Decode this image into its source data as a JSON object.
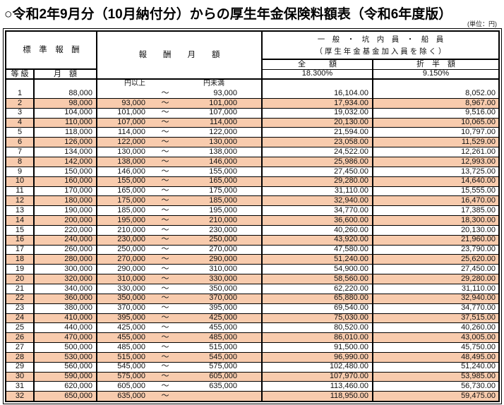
{
  "title": "○令和2年9月分（10月納付分）からの厚生年金保険料額表（令和6年度版）",
  "unit_note": "(単位：円)",
  "colors": {
    "highlight": "#F8CBAD",
    "border": "#000000"
  },
  "table": {
    "header": {
      "standard_remuneration": "標　準　報　酬",
      "grade": "等 級",
      "monthly_amount": "月　額",
      "remuneration_monthly": "報　　酬　　月　　額",
      "group_line1": "一　般　・　坑　内　員　・　船　員",
      "group_line2": "（ 厚 生 年 金 基 金 加 入 員 を 除 く ）",
      "full_amount": "全　　　額",
      "half_amount": "折　半　額",
      "full_rate": "18.300%",
      "half_rate": "9.150%",
      "yen_or_more": "円以上",
      "yen_less_than": "円未満",
      "tilde": "～"
    },
    "rows": [
      {
        "grade": "1",
        "monthly": "88,000",
        "lo": "",
        "hi": "93,000",
        "full": "16,104.00",
        "half": "8,052.00"
      },
      {
        "grade": "2",
        "monthly": "98,000",
        "lo": "93,000",
        "hi": "101,000",
        "full": "17,934.00",
        "half": "8,967.00"
      },
      {
        "grade": "3",
        "monthly": "104,000",
        "lo": "101,000",
        "hi": "107,000",
        "full": "19,032.00",
        "half": "9,516.00"
      },
      {
        "grade": "4",
        "monthly": "110,000",
        "lo": "107,000",
        "hi": "114,000",
        "full": "20,130.00",
        "half": "10,065.00"
      },
      {
        "grade": "5",
        "monthly": "118,000",
        "lo": "114,000",
        "hi": "122,000",
        "full": "21,594.00",
        "half": "10,797.00"
      },
      {
        "grade": "6",
        "monthly": "126,000",
        "lo": "122,000",
        "hi": "130,000",
        "full": "23,058.00",
        "half": "11,529.00"
      },
      {
        "grade": "7",
        "monthly": "134,000",
        "lo": "130,000",
        "hi": "138,000",
        "full": "24,522.00",
        "half": "12,261.00"
      },
      {
        "grade": "8",
        "monthly": "142,000",
        "lo": "138,000",
        "hi": "146,000",
        "full": "25,986.00",
        "half": "12,993.00"
      },
      {
        "grade": "9",
        "monthly": "150,000",
        "lo": "146,000",
        "hi": "155,000",
        "full": "27,450.00",
        "half": "13,725.00"
      },
      {
        "grade": "10",
        "monthly": "160,000",
        "lo": "155,000",
        "hi": "165,000",
        "full": "29,280.00",
        "half": "14,640.00"
      },
      {
        "grade": "11",
        "monthly": "170,000",
        "lo": "165,000",
        "hi": "175,000",
        "full": "31,110.00",
        "half": "15,555.00"
      },
      {
        "grade": "12",
        "monthly": "180,000",
        "lo": "175,000",
        "hi": "185,000",
        "full": "32,940.00",
        "half": "16,470.00"
      },
      {
        "grade": "13",
        "monthly": "190,000",
        "lo": "185,000",
        "hi": "195,000",
        "full": "34,770.00",
        "half": "17,385.00"
      },
      {
        "grade": "14",
        "monthly": "200,000",
        "lo": "195,000",
        "hi": "210,000",
        "full": "36,600.00",
        "half": "18,300.00"
      },
      {
        "grade": "15",
        "monthly": "220,000",
        "lo": "210,000",
        "hi": "230,000",
        "full": "40,260.00",
        "half": "20,130.00"
      },
      {
        "grade": "16",
        "monthly": "240,000",
        "lo": "230,000",
        "hi": "250,000",
        "full": "43,920.00",
        "half": "21,960.00"
      },
      {
        "grade": "17",
        "monthly": "260,000",
        "lo": "250,000",
        "hi": "270,000",
        "full": "47,580.00",
        "half": "23,790.00"
      },
      {
        "grade": "18",
        "monthly": "280,000",
        "lo": "270,000",
        "hi": "290,000",
        "full": "51,240.00",
        "half": "25,620.00"
      },
      {
        "grade": "19",
        "monthly": "300,000",
        "lo": "290,000",
        "hi": "310,000",
        "full": "54,900.00",
        "half": "27,450.00"
      },
      {
        "grade": "20",
        "monthly": "320,000",
        "lo": "310,000",
        "hi": "330,000",
        "full": "58,560.00",
        "half": "29,280.00"
      },
      {
        "grade": "21",
        "monthly": "340,000",
        "lo": "330,000",
        "hi": "350,000",
        "full": "62,220.00",
        "half": "31,110.00"
      },
      {
        "grade": "22",
        "monthly": "360,000",
        "lo": "350,000",
        "hi": "370,000",
        "full": "65,880.00",
        "half": "32,940.00"
      },
      {
        "grade": "23",
        "monthly": "380,000",
        "lo": "370,000",
        "hi": "395,000",
        "full": "69,540.00",
        "half": "34,770.00"
      },
      {
        "grade": "24",
        "monthly": "410,000",
        "lo": "395,000",
        "hi": "425,000",
        "full": "75,030.00",
        "half": "37,515.00"
      },
      {
        "grade": "25",
        "monthly": "440,000",
        "lo": "425,000",
        "hi": "455,000",
        "full": "80,520.00",
        "half": "40,260.00"
      },
      {
        "grade": "26",
        "monthly": "470,000",
        "lo": "455,000",
        "hi": "485,000",
        "full": "86,010.00",
        "half": "43,005.00"
      },
      {
        "grade": "27",
        "monthly": "500,000",
        "lo": "485,000",
        "hi": "515,000",
        "full": "91,500.00",
        "half": "45,750.00"
      },
      {
        "grade": "28",
        "monthly": "530,000",
        "lo": "515,000",
        "hi": "545,000",
        "full": "96,990.00",
        "half": "48,495.00"
      },
      {
        "grade": "29",
        "monthly": "560,000",
        "lo": "545,000",
        "hi": "575,000",
        "full": "102,480.00",
        "half": "51,240.00"
      },
      {
        "grade": "30",
        "monthly": "590,000",
        "lo": "575,000",
        "hi": "605,000",
        "full": "107,970.00",
        "half": "53,985.00"
      },
      {
        "grade": "31",
        "monthly": "620,000",
        "lo": "605,000",
        "hi": "635,000",
        "full": "113,460.00",
        "half": "56,730.00"
      },
      {
        "grade": "32",
        "monthly": "650,000",
        "lo": "635,000",
        "hi": "",
        "full": "118,950.00",
        "half": "59,475.00"
      }
    ]
  }
}
